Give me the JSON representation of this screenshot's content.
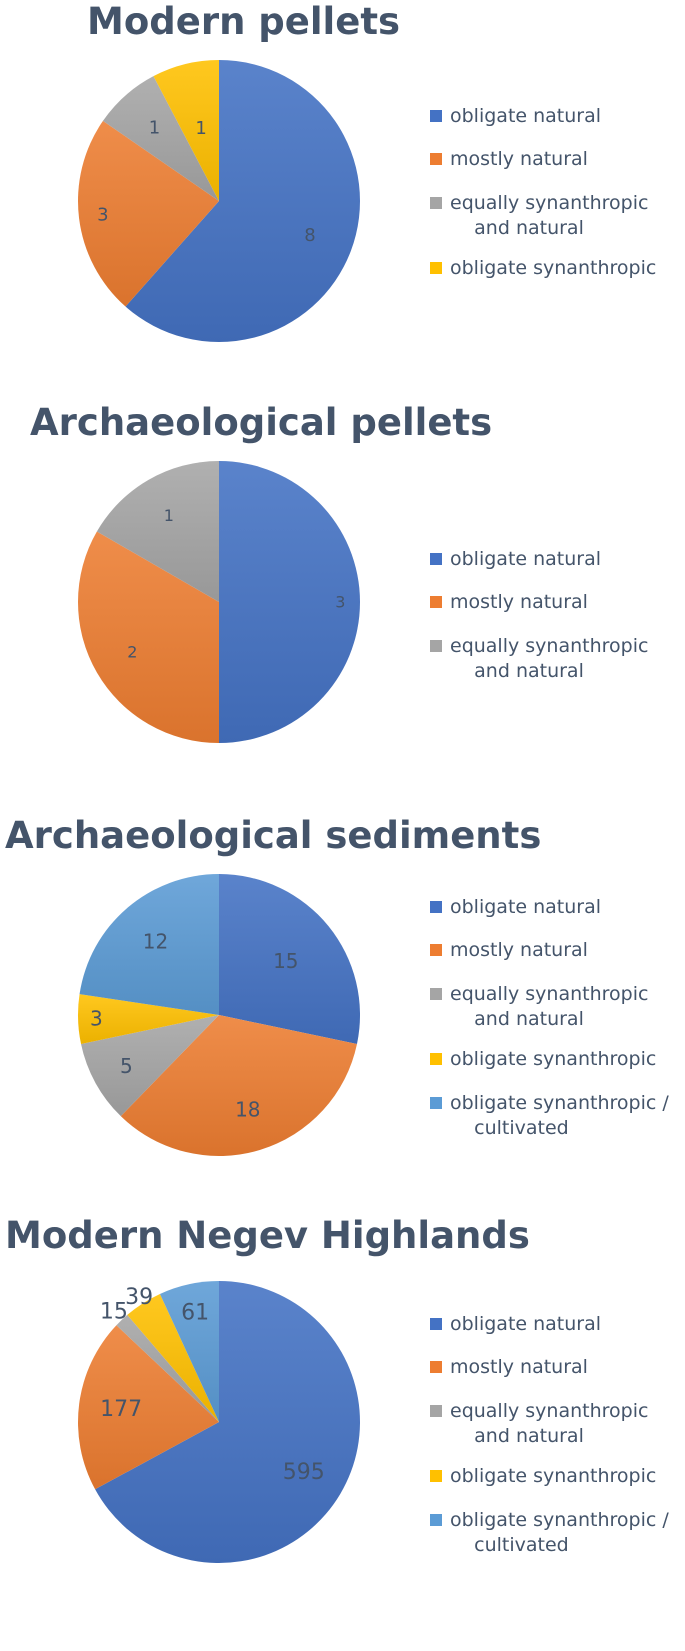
{
  "colors": {
    "obligate_natural": "#4472c4",
    "mostly_natural": "#ed7d31",
    "equally": "#a5a5a5",
    "obligate_synanthropic": "#ffc000",
    "cultivated": "#5b9bd5",
    "title": "#44546a"
  },
  "chart_data": [
    {
      "type": "pie",
      "title": "Modern pellets",
      "categories": [
        "obligate natural",
        "mostly natural",
        "equally synanthropic\n    and natural",
        "obligate synanthropic"
      ],
      "values": [
        8,
        3,
        1,
        1
      ],
      "labels": [
        "8",
        "3",
        "1",
        "1"
      ],
      "legend": "right"
    },
    {
      "type": "pie",
      "title": "Archaeological pellets",
      "categories": [
        "obligate natural",
        "mostly natural",
        "equally synanthropic\n    and natural"
      ],
      "values": [
        3,
        2,
        1
      ],
      "labels": [
        "3",
        "2",
        "1"
      ],
      "legend": "right"
    },
    {
      "type": "pie",
      "title": "Archaeological sediments",
      "categories": [
        "obligate natural",
        "mostly natural",
        "equally synanthropic\n    and natural",
        "obligate synanthropic",
        "obligate synanthropic /\n    cultivated"
      ],
      "values": [
        15,
        18,
        5,
        3,
        12
      ],
      "labels": [
        "15",
        "18",
        "5",
        "3",
        "12"
      ],
      "legend": "right"
    },
    {
      "type": "pie",
      "title": "Modern Negev Highlands",
      "categories": [
        "obligate natural",
        "mostly natural",
        "equally synanthropic\n    and natural",
        "obligate synanthropic",
        "obligate synanthropic /\n    cultivated"
      ],
      "values": [
        595,
        177,
        15,
        39,
        61
      ],
      "labels": [
        "595",
        "177",
        "15",
        "39",
        "61"
      ],
      "legend": "right"
    }
  ]
}
